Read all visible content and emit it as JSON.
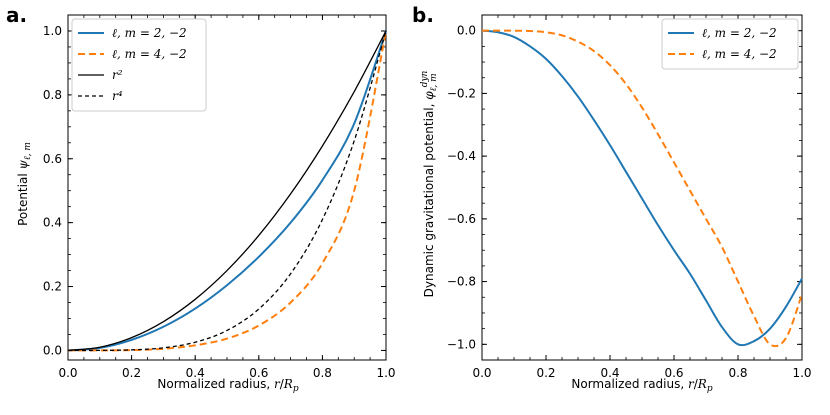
{
  "chart_data": [
    {
      "type": "line",
      "panel_label": "a.",
      "xlabel": "Normalized radius, r/R_p",
      "ylabel": "Potential ψ_ℓ,m",
      "xlim": [
        0.0,
        1.0
      ],
      "ylim": [
        -0.03,
        1.05
      ],
      "xticks": [
        0.0,
        0.2,
        0.4,
        0.6,
        0.8,
        1.0
      ],
      "xtick_labels": [
        "0.0",
        "0.2",
        "0.4",
        "0.6",
        "0.8",
        "1.0"
      ],
      "yticks": [
        0.0,
        0.2,
        0.4,
        0.6,
        0.8,
        1.0
      ],
      "ytick_labels": [
        "0.0",
        "0.2",
        "0.4",
        "0.6",
        "0.8",
        "1.0"
      ],
      "legend_position": "top-left",
      "x": [
        0.0,
        0.1,
        0.2,
        0.3,
        0.4,
        0.5,
        0.6,
        0.7,
        0.8,
        0.9,
        1.0
      ],
      "series": [
        {
          "name": "ℓ, m = 2, −2",
          "color": "#1f77b4",
          "style": "solid",
          "width": 2,
          "values": [
            0.0,
            0.008,
            0.033,
            0.074,
            0.131,
            0.204,
            0.293,
            0.4,
            0.533,
            0.71,
            1.0
          ]
        },
        {
          "name": "ℓ, m = 4, −2",
          "color": "#ff7f0e",
          "style": "dashed",
          "width": 2,
          "values": [
            0.0,
            0.0001,
            0.001,
            0.005,
            0.016,
            0.037,
            0.078,
            0.15,
            0.273,
            0.5,
            1.0
          ]
        },
        {
          "name": "r²",
          "color": "#000000",
          "style": "solid",
          "width": 1.3,
          "values": [
            0.0,
            0.01,
            0.04,
            0.09,
            0.16,
            0.25,
            0.36,
            0.49,
            0.64,
            0.81,
            1.0
          ]
        },
        {
          "name": "r⁴",
          "color": "#000000",
          "style": "dashed",
          "width": 1.3,
          "values": [
            0.0,
            0.0001,
            0.0016,
            0.0081,
            0.0256,
            0.0625,
            0.1296,
            0.2401,
            0.4096,
            0.6561,
            1.0
          ]
        }
      ]
    },
    {
      "type": "line",
      "panel_label": "b.",
      "xlabel": "Normalized radius, r/R_p",
      "ylabel": "Dynamic gravitational potential, φ^dyn_ℓ,m",
      "xlim": [
        0.0,
        1.0
      ],
      "ylim": [
        -1.05,
        0.05
      ],
      "xticks": [
        0.0,
        0.2,
        0.4,
        0.6,
        0.8,
        1.0
      ],
      "xtick_labels": [
        "0.0",
        "0.2",
        "0.4",
        "0.6",
        "0.8",
        "1.0"
      ],
      "yticks": [
        -1.0,
        -0.8,
        -0.6,
        -0.4,
        -0.2,
        0.0
      ],
      "ytick_labels": [
        "−1.0",
        "−0.8",
        "−0.6",
        "−0.4",
        "−0.2",
        "0.0"
      ],
      "legend_position": "top-right",
      "x": [
        0.0,
        0.05,
        0.1,
        0.15,
        0.2,
        0.25,
        0.3,
        0.35,
        0.4,
        0.45,
        0.5,
        0.55,
        0.6,
        0.65,
        0.7,
        0.75,
        0.8,
        0.85,
        0.9,
        0.95,
        1.0
      ],
      "series": [
        {
          "name": "ℓ, m = 2, −2",
          "color": "#1f77b4",
          "style": "solid",
          "width": 2,
          "values": [
            0.0,
            -0.005,
            -0.02,
            -0.05,
            -0.09,
            -0.145,
            -0.21,
            -0.285,
            -0.365,
            -0.45,
            -0.535,
            -0.62,
            -0.7,
            -0.775,
            -0.86,
            -0.945,
            -1.0,
            -0.99,
            -0.95,
            -0.88,
            -0.79
          ]
        },
        {
          "name": "ℓ, m = 4, −2",
          "color": "#ff7f0e",
          "style": "dashed",
          "width": 2,
          "values": [
            0.0,
            0.0,
            0.0,
            -0.001,
            -0.005,
            -0.015,
            -0.035,
            -0.065,
            -0.11,
            -0.17,
            -0.245,
            -0.33,
            -0.42,
            -0.51,
            -0.6,
            -0.69,
            -0.8,
            -0.91,
            -1.0,
            -0.98,
            -0.84
          ]
        }
      ]
    }
  ]
}
